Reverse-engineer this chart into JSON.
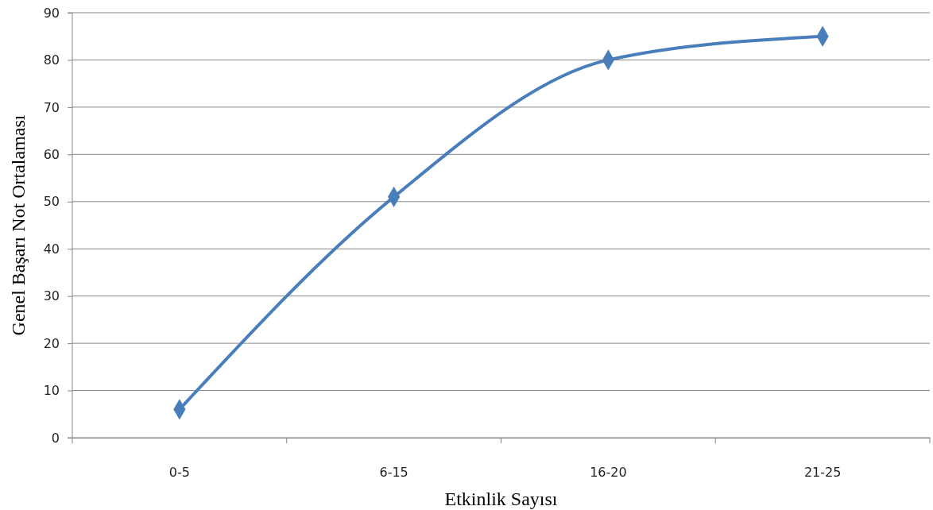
{
  "chart_data": {
    "type": "line",
    "xlabel": "Etkinlik Sayısı",
    "ylabel": "Genel Başarı Not Ortalaması",
    "categories": [
      "0-5",
      "6-15",
      "16-20",
      "21-25"
    ],
    "series": [
      {
        "color": "#4a7ebb",
        "values": [
          6,
          51,
          80,
          85
        ]
      }
    ],
    "ylim": [
      0,
      90
    ],
    "yticks": [
      0,
      10,
      20,
      30,
      40,
      50,
      60,
      70,
      80,
      90
    ],
    "grid": "y",
    "marker": "diamond",
    "line_style": "solid"
  }
}
